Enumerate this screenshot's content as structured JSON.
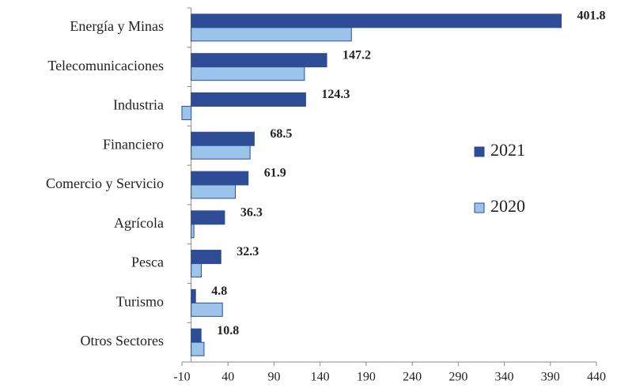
{
  "chart_data": {
    "type": "bar",
    "orientation": "horizontal",
    "categories": [
      "Energía y Minas",
      "Telecomunicaciones",
      "Industria",
      "Financiero",
      "Comercio y Servicio",
      "Agrícola",
      "Pesca",
      "Turismo",
      "Otros Sectores"
    ],
    "series": [
      {
        "name": "2021",
        "color": "#2e4d96",
        "values": [
          401.8,
          147.2,
          124.3,
          68.5,
          61.9,
          36.3,
          32.3,
          4.8,
          10.8
        ]
      },
      {
        "name": "2020",
        "color": "#9cc3ea",
        "values": [
          174,
          123,
          -10,
          64,
          48,
          3,
          11,
          34,
          14
        ]
      }
    ],
    "show_value_labels_for": "2021",
    "xlim": [
      -10,
      440
    ],
    "xticks": [
      -10,
      40,
      90,
      140,
      190,
      240,
      290,
      340,
      390,
      440
    ],
    "grid": false,
    "legend": "right"
  }
}
